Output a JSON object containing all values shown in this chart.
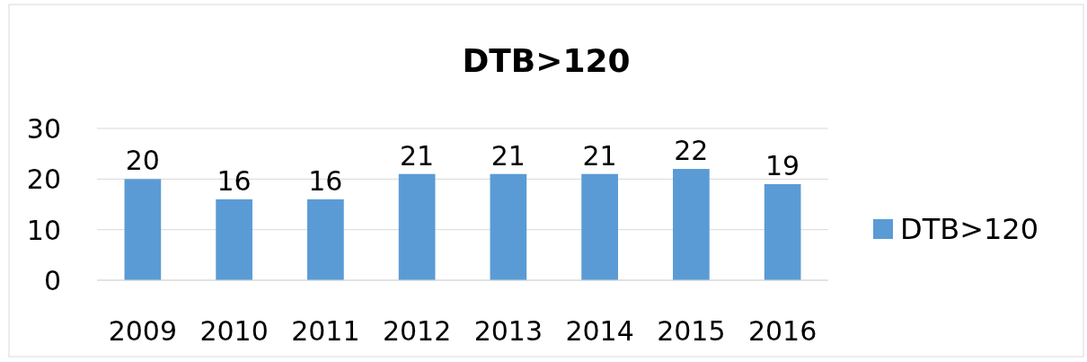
{
  "chart_data": {
    "type": "bar",
    "title": "DTB>120",
    "categories": [
      "2009",
      "2010",
      "2011",
      "2012",
      "2013",
      "2014",
      "2015",
      "2016"
    ],
    "series": [
      {
        "name": "DTB>120",
        "color": "#5b9bd5",
        "values": [
          20,
          16,
          16,
          21,
          21,
          21,
          22,
          19
        ]
      }
    ],
    "ylim": [
      0,
      30
    ],
    "yticks": [
      0,
      10,
      20,
      30
    ],
    "grid": "y",
    "legend": "right",
    "data_labels": true
  }
}
